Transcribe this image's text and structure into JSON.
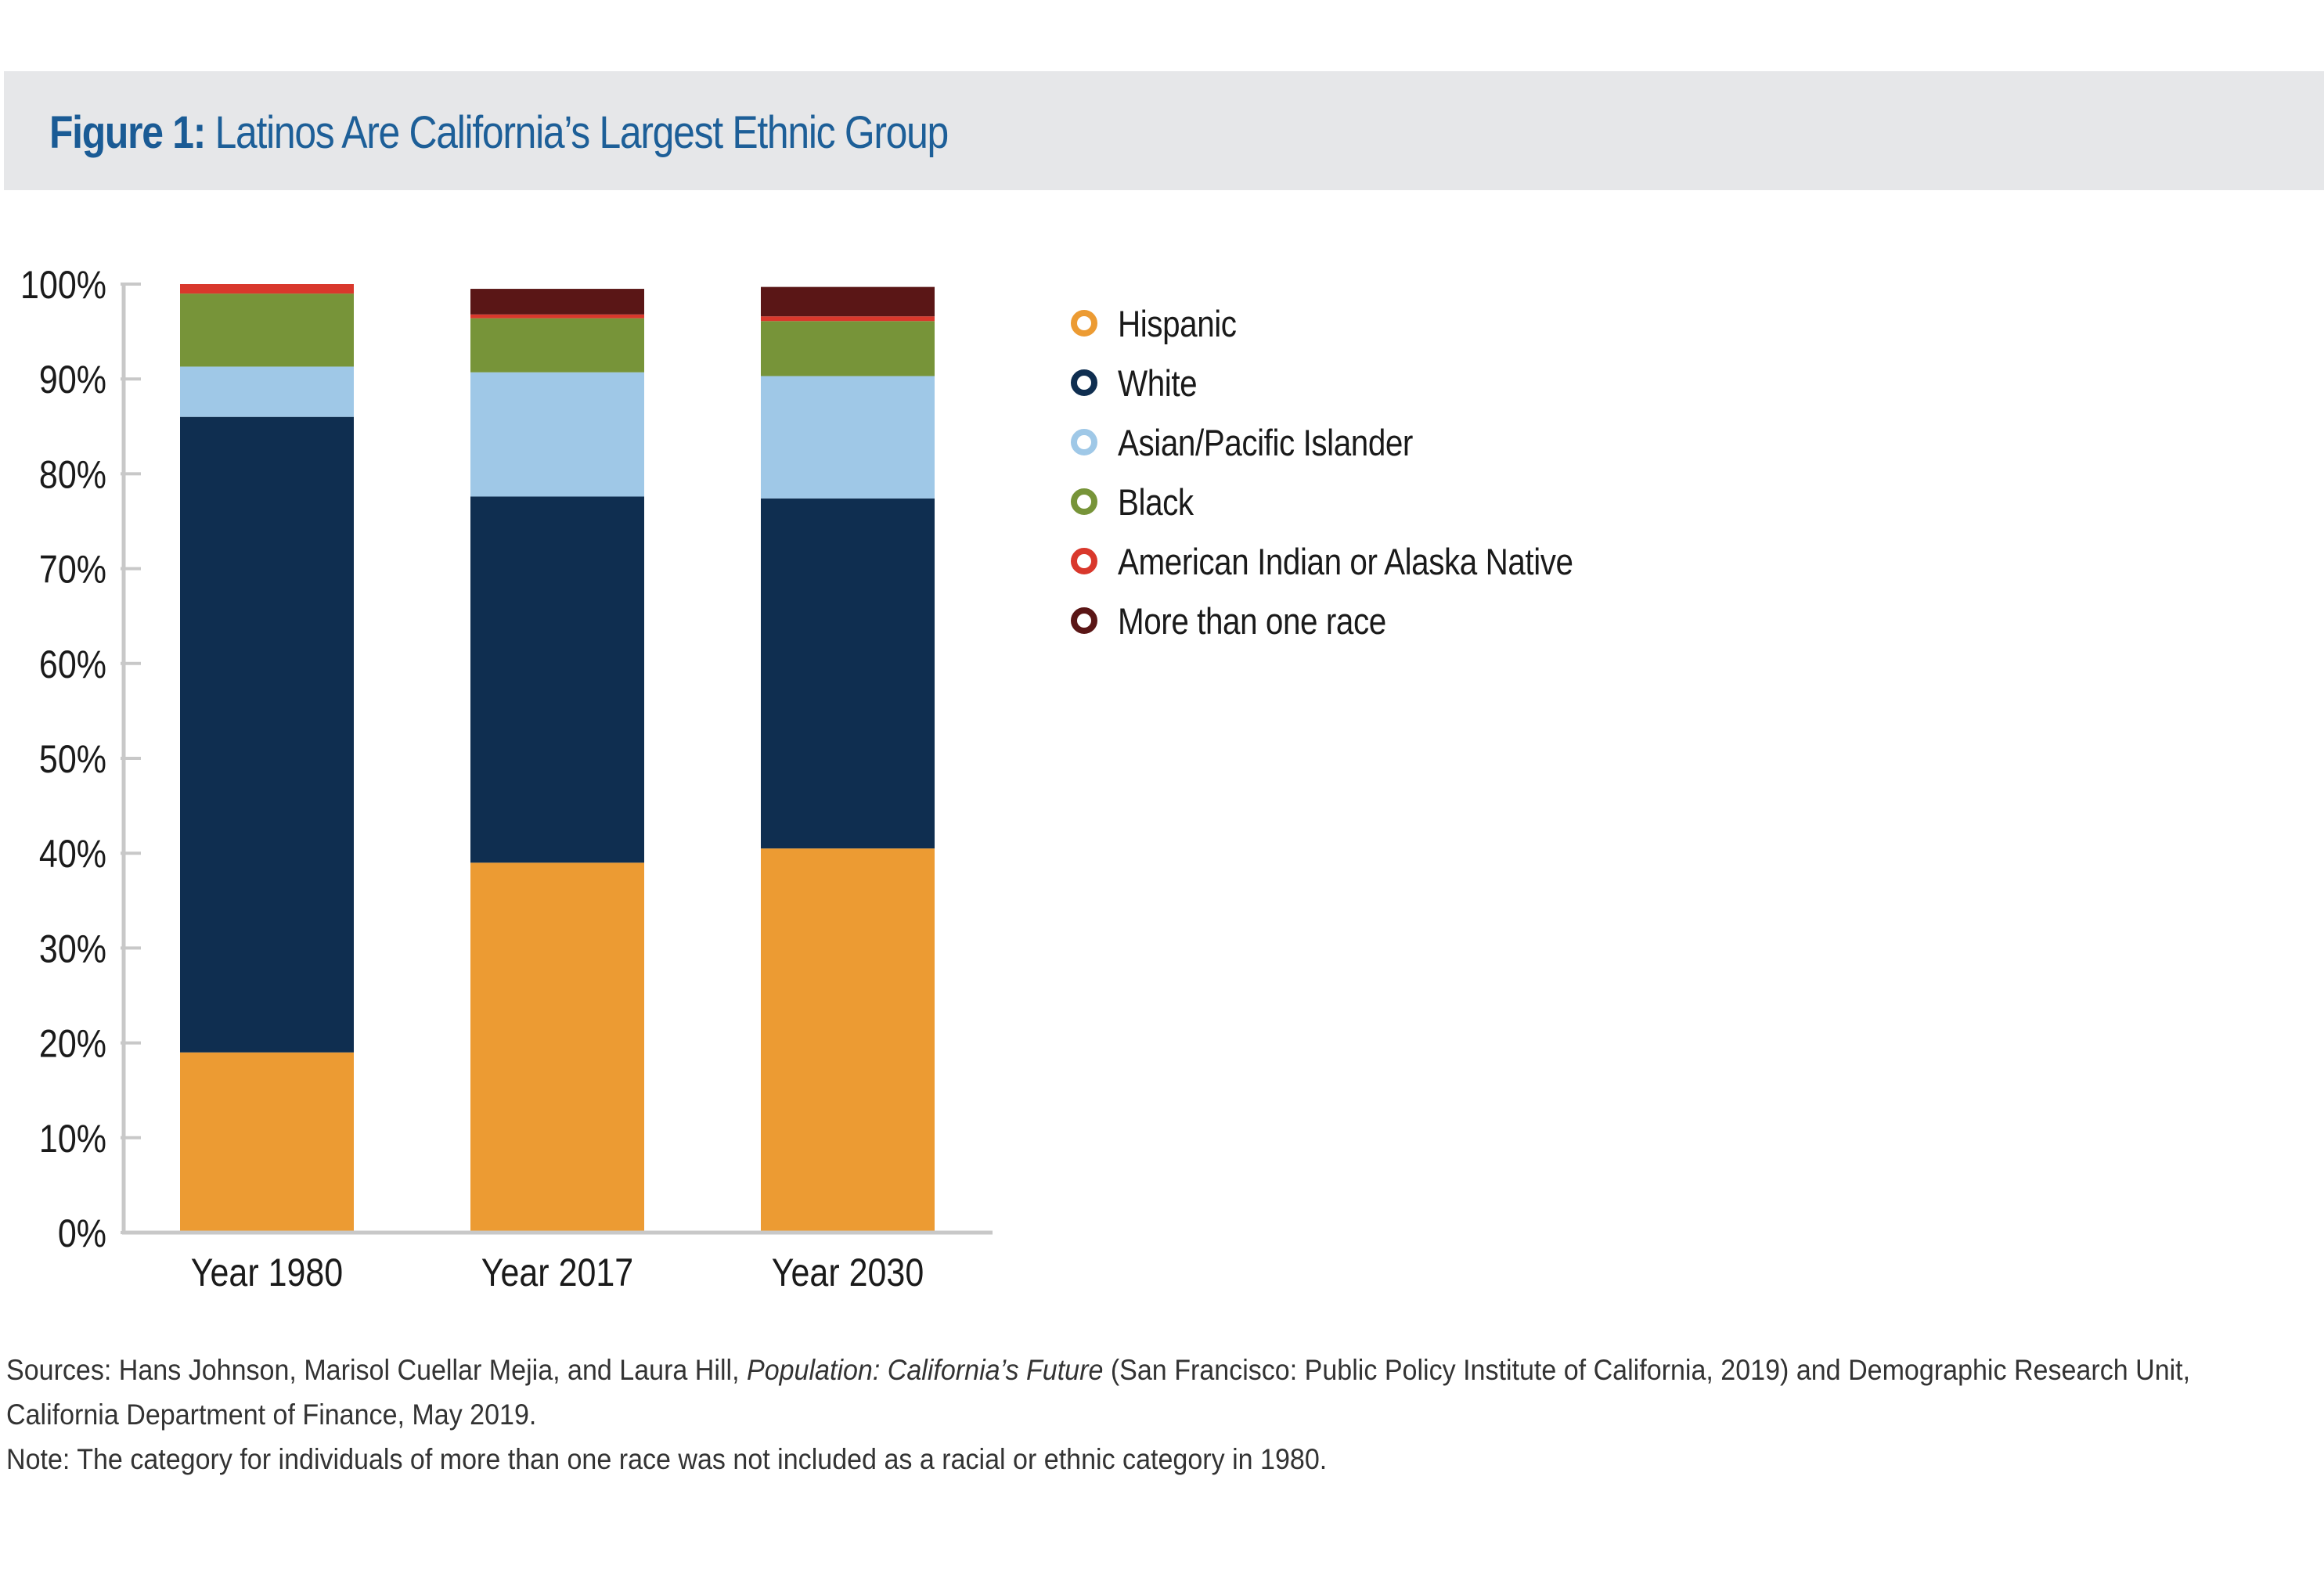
{
  "header": {
    "figure_label": "Figure 1:",
    "title": "Latinos Are California’s Largest Ethnic Group"
  },
  "colors": {
    "Hispanic": "#ec9b33",
    "White": "#0f2e50",
    "Asian/Pacific Islander": "#9fc8e7",
    "Black": "#779439",
    "American Indian or Alaska Native": "#d9382c",
    "More than one race": "#5a1616",
    "axis": "#c8c8c8",
    "title_bg": "#e6e7e9"
  },
  "chart_data": {
    "type": "bar",
    "stacked": true,
    "categories": [
      "Year 1980",
      "Year 2017",
      "Year 2030"
    ],
    "series": [
      {
        "name": "Hispanic",
        "values": [
          19,
          39,
          40.5
        ]
      },
      {
        "name": "White",
        "values": [
          67,
          38.6,
          36.9
        ]
      },
      {
        "name": "Asian/Pacific Islander",
        "values": [
          5.3,
          13.1,
          12.9
        ]
      },
      {
        "name": "Black",
        "values": [
          7.7,
          5.7,
          5.8
        ]
      },
      {
        "name": "American Indian or Alaska Native",
        "values": [
          1,
          0.4,
          0.5
        ]
      },
      {
        "name": "More than one race",
        "values": [
          0,
          2.7,
          3.1
        ]
      }
    ],
    "yticks": [
      "0%",
      "10%",
      "20%",
      "30%",
      "40%",
      "50%",
      "60%",
      "70%",
      "80%",
      "90%",
      "100%"
    ],
    "ylim": [
      0,
      100
    ],
    "grid": false,
    "legend_position": "right"
  },
  "footnote": {
    "sources_prefix": "Sources: Hans Johnson, Marisol Cuellar Mejia, and Laura Hill, ",
    "sources_publication": "Population: California’s Future",
    "sources_suffix": " (San Francisco: Public Policy Institute of California, 2019) and Demographic Research Unit, California Department of Finance, May 2019.",
    "note": "Note: The category for individuals of more than one race was not included as a racial or ethnic category in 1980."
  }
}
